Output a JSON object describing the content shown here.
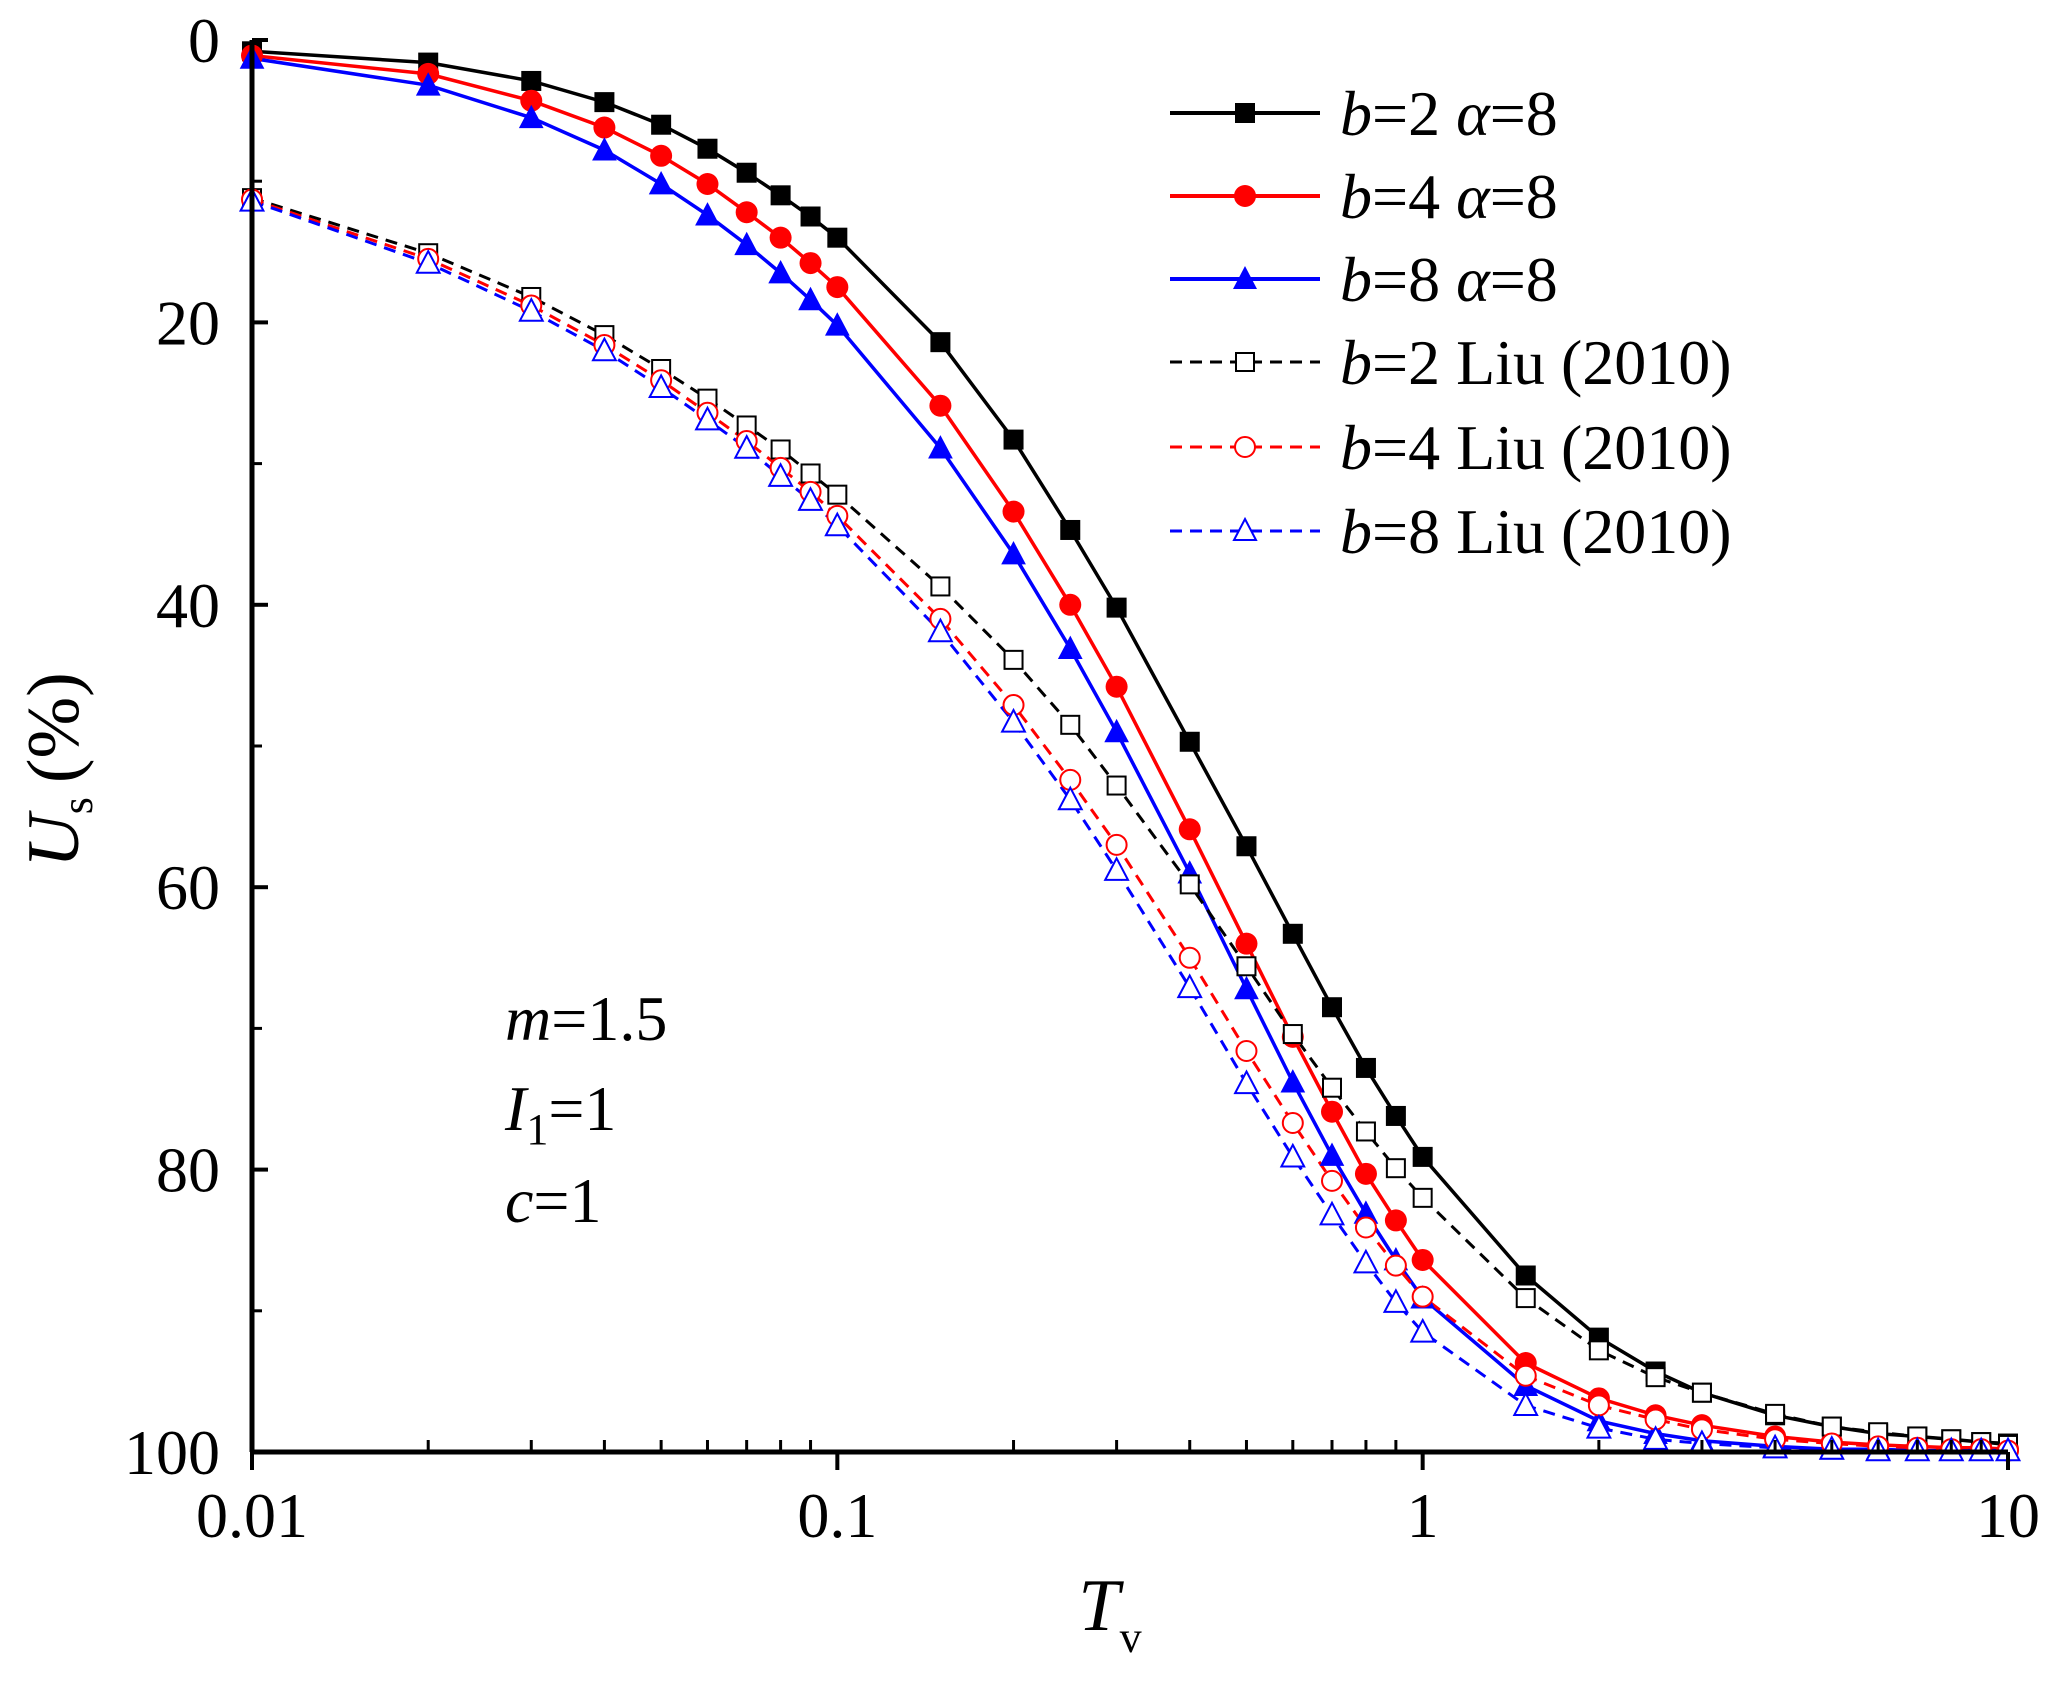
{
  "chart_data": {
    "type": "line",
    "title": "",
    "xlabel": "T",
    "xlabel_subscript": "v",
    "ylabel": "U",
    "ylabel_subscript": "s",
    "ylabel_unit": "(%)",
    "xscale": "log",
    "xlim": [
      0.01,
      10
    ],
    "ylim": [
      0,
      100
    ],
    "y_inverted": true,
    "x_ticks": [
      0.01,
      0.1,
      1,
      10
    ],
    "x_tick_labels": [
      "0.01",
      "0.1",
      "1",
      "10"
    ],
    "y_ticks": [
      0,
      20,
      40,
      60,
      80,
      100
    ],
    "y_tick_labels": [
      "0",
      "20",
      "40",
      "60",
      "80",
      "100"
    ],
    "grid": false,
    "legend_position": "top-right",
    "annotations": [
      {
        "var": "m",
        "sub": "",
        "rest": "=1.5"
      },
      {
        "var": "I",
        "sub": "1",
        "rest": "=1"
      },
      {
        "var": "c",
        "sub": "",
        "rest": "=1"
      }
    ],
    "series": [
      {
        "name": "b=2 α=8",
        "legend_var": "b",
        "legend_rest": "=2 ",
        "legend_var2": "α",
        "legend_rest2": "=8",
        "color": "#000000",
        "dashed": false,
        "marker": "square",
        "filled": true,
        "x": [
          0.01,
          0.02,
          0.03,
          0.04,
          0.05,
          0.06,
          0.07,
          0.08,
          0.09,
          0.1,
          0.15,
          0.2,
          0.25,
          0.3,
          0.4,
          0.5,
          0.6,
          0.7,
          0.8,
          0.9,
          1,
          1.5,
          2,
          2.5,
          3,
          4,
          5,
          6,
          7,
          8,
          9,
          10
        ],
        "y": [
          0.8,
          1.6,
          2.9,
          4.4,
          6.0,
          7.7,
          9.4,
          11.0,
          12.5,
          14.0,
          21.4,
          28.3,
          34.7,
          40.2,
          49.7,
          57.1,
          63.3,
          68.5,
          72.8,
          76.2,
          79.1,
          87.5,
          91.9,
          94.3,
          95.8,
          97.4,
          98.2,
          98.7,
          98.9,
          99.1,
          99.3,
          99.4
        ]
      },
      {
        "name": "b=4 α=8",
        "legend_var": "b",
        "legend_rest": "=4 ",
        "legend_var2": "α",
        "legend_rest2": "=8",
        "color": "#ff0000",
        "dashed": false,
        "marker": "circle",
        "filled": true,
        "x": [
          0.01,
          0.02,
          0.03,
          0.04,
          0.05,
          0.06,
          0.07,
          0.08,
          0.09,
          0.1,
          0.15,
          0.2,
          0.25,
          0.3,
          0.4,
          0.5,
          0.6,
          0.7,
          0.8,
          0.9,
          1,
          1.5,
          2,
          2.5,
          3,
          4,
          5,
          6,
          7,
          8,
          9,
          10
        ],
        "y": [
          1.1,
          2.4,
          4.3,
          6.2,
          8.2,
          10.2,
          12.2,
          14.0,
          15.8,
          17.5,
          25.9,
          33.4,
          40.0,
          45.8,
          55.9,
          64.0,
          70.6,
          75.9,
          80.3,
          83.6,
          86.4,
          93.7,
          96.2,
          97.4,
          98.1,
          98.9,
          99.3,
          99.5,
          99.6,
          99.7,
          99.7,
          99.8
        ]
      },
      {
        "name": "b=8 α=8",
        "legend_var": "b",
        "legend_rest": "=8 ",
        "legend_var2": "α",
        "legend_rest2": "=8",
        "color": "#0000ff",
        "dashed": false,
        "marker": "triangle",
        "filled": true,
        "x": [
          0.01,
          0.02,
          0.03,
          0.04,
          0.05,
          0.06,
          0.07,
          0.08,
          0.09,
          0.1,
          0.15,
          0.2,
          0.25,
          0.3,
          0.4,
          0.5,
          0.6,
          0.7,
          0.8,
          0.9,
          1,
          1.5,
          2,
          2.5,
          3,
          4,
          5,
          6,
          7,
          8,
          9,
          10
        ],
        "y": [
          1.3,
          3.2,
          5.5,
          7.8,
          10.2,
          12.4,
          14.5,
          16.5,
          18.4,
          20.2,
          28.9,
          36.4,
          43.1,
          49.0,
          59.0,
          67.2,
          73.8,
          79.0,
          83.1,
          86.4,
          89.1,
          95.3,
          97.8,
          98.7,
          99.2,
          99.6,
          99.8,
          99.8,
          99.9,
          99.9,
          99.9,
          99.9
        ]
      },
      {
        "name": "b=2 Liu (2010)",
        "legend_var": "b",
        "legend_rest": "=2 Liu (2010)",
        "color": "#000000",
        "dashed": true,
        "marker": "square",
        "filled": false,
        "x": [
          0.01,
          0.02,
          0.03,
          0.04,
          0.05,
          0.06,
          0.07,
          0.08,
          0.09,
          0.1,
          0.15,
          0.2,
          0.25,
          0.3,
          0.4,
          0.5,
          0.6,
          0.7,
          0.8,
          0.9,
          1,
          1.5,
          2,
          2.5,
          3,
          4,
          5,
          6,
          7,
          8,
          9,
          10
        ],
        "y": [
          11.2,
          15.1,
          18.2,
          20.9,
          23.3,
          25.4,
          27.3,
          29.0,
          30.7,
          32.2,
          38.7,
          43.9,
          48.5,
          52.8,
          59.8,
          65.6,
          70.4,
          74.2,
          77.3,
          79.9,
          82.0,
          89.1,
          92.8,
          94.7,
          95.8,
          97.3,
          98.2,
          98.6,
          98.9,
          99.1,
          99.3,
          99.5
        ]
      },
      {
        "name": "b=4 Liu (2010)",
        "legend_var": "b",
        "legend_rest": "=4 Liu (2010)",
        "color": "#ff0000",
        "dashed": true,
        "marker": "circle",
        "filled": false,
        "x": [
          0.01,
          0.02,
          0.03,
          0.04,
          0.05,
          0.06,
          0.07,
          0.08,
          0.09,
          0.1,
          0.15,
          0.2,
          0.25,
          0.3,
          0.4,
          0.5,
          0.6,
          0.7,
          0.8,
          0.9,
          1,
          1.5,
          2,
          2.5,
          3,
          4,
          5,
          6,
          7,
          8,
          9,
          10
        ],
        "y": [
          11.3,
          15.5,
          18.8,
          21.6,
          24.1,
          26.4,
          28.4,
          30.3,
          32.0,
          33.7,
          41.0,
          47.1,
          52.4,
          57.0,
          65.0,
          71.6,
          76.7,
          80.8,
          84.1,
          86.8,
          89.0,
          94.6,
          96.7,
          97.7,
          98.4,
          99.1,
          99.4,
          99.6,
          99.7,
          99.8,
          99.8,
          99.9
        ]
      },
      {
        "name": "b=8 Liu (2010)",
        "legend_var": "b",
        "legend_rest": "=8 Liu (2010)",
        "color": "#0000ff",
        "dashed": true,
        "marker": "triangle",
        "filled": false,
        "x": [
          0.01,
          0.02,
          0.03,
          0.04,
          0.05,
          0.06,
          0.07,
          0.08,
          0.09,
          0.1,
          0.15,
          0.2,
          0.25,
          0.3,
          0.4,
          0.5,
          0.6,
          0.7,
          0.8,
          0.9,
          1,
          1.5,
          2,
          2.5,
          3,
          4,
          5,
          6,
          7,
          8,
          9,
          10
        ],
        "y": [
          11.4,
          15.8,
          19.2,
          22.0,
          24.6,
          26.9,
          28.9,
          30.9,
          32.6,
          34.4,
          41.9,
          48.3,
          53.8,
          58.8,
          67.1,
          73.9,
          79.1,
          83.2,
          86.6,
          89.4,
          91.5,
          96.7,
          98.3,
          99.1,
          99.4,
          99.7,
          99.8,
          99.9,
          99.9,
          99.9,
          99.9,
          99.9
        ]
      }
    ]
  }
}
